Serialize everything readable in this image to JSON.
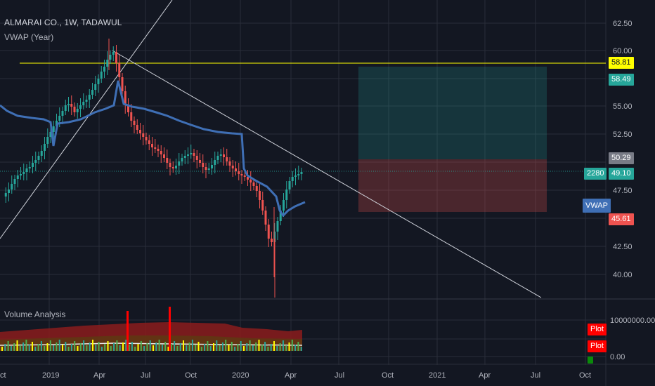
{
  "header": {
    "symbol_title": "ALMARAI CO., 1W, TADAWUL",
    "indicator_label": "VWAP (Year)",
    "volume_label": "Volume Analysis"
  },
  "price_axis": {
    "ticks": [
      "62.50",
      "60.00",
      "55.00",
      "52.50",
      "47.50",
      "42.50",
      "40.00"
    ],
    "tags": {
      "yellow": {
        "value": "58.81",
        "bg": "#ffff00",
        "fg": "#131722"
      },
      "target": {
        "value": "58.49",
        "bg": "#26a69a",
        "fg": "#ffffff"
      },
      "stop_top": {
        "value": "50.29",
        "bg": "#787b86",
        "fg": "#ffffff"
      },
      "current": {
        "value": "49.10",
        "bg": "#26a69a",
        "fg": "#ffffff"
      },
      "stop": {
        "value": "45.61",
        "bg": "#ef5350",
        "fg": "#ffffff"
      }
    },
    "count_tag": "2280",
    "vwap_tag": "VWAP"
  },
  "volume_axis": {
    "ticks": [
      "10000000.00",
      "0.00"
    ],
    "plot_tags": [
      "Plot",
      "Plot"
    ]
  },
  "time_axis": {
    "labels": [
      "ct",
      "2019",
      "Apr",
      "Jul",
      "Oct",
      "2020",
      "Apr",
      "Jul",
      "Oct",
      "2021",
      "Apr",
      "Jul",
      "Oct"
    ]
  },
  "colors": {
    "background": "#131722",
    "grid": "#2a2e39",
    "up": "#26a69a",
    "down": "#ef5350",
    "vwap": "#3f6fb5",
    "hline": "#ffff00"
  }
}
